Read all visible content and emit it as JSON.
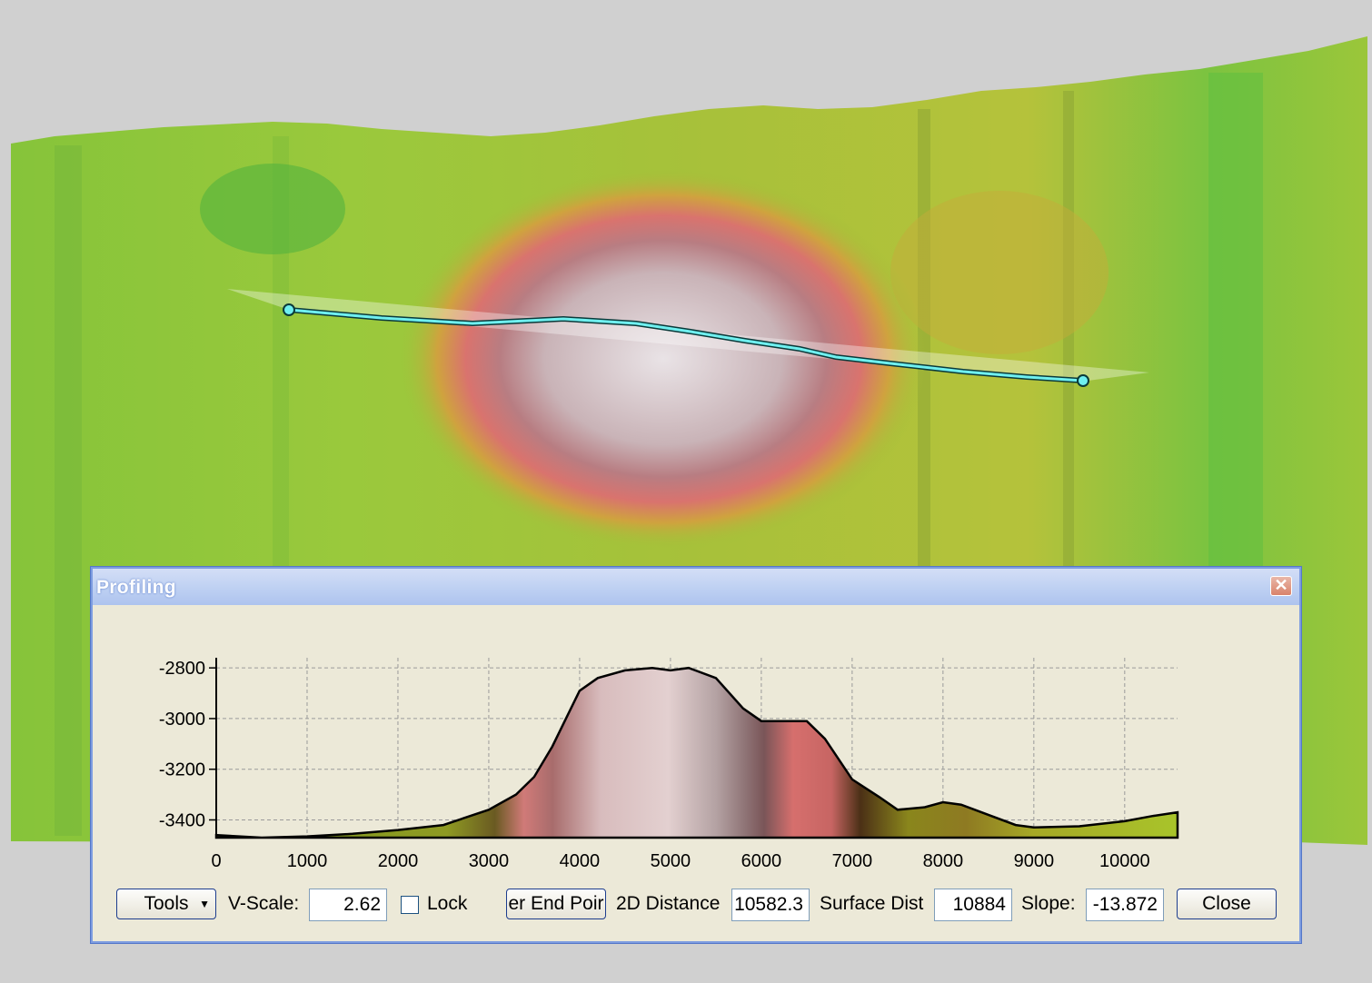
{
  "window": {
    "title": "Profiling",
    "close_glyph": "✕"
  },
  "chart_data": {
    "type": "area",
    "x_ticks": [
      "0",
      "1000",
      "2000",
      "3000",
      "4000",
      "5000",
      "6000",
      "7000",
      "8000",
      "9000",
      "10000"
    ],
    "y_ticks": [
      "-2800",
      "-3000",
      "-3200",
      "-3400"
    ],
    "xlim": [
      0,
      10582
    ],
    "ylim": [
      -3470,
      -2760
    ],
    "grid": true,
    "x": [
      0,
      500,
      1000,
      1500,
      2000,
      2500,
      3000,
      3300,
      3500,
      3700,
      4000,
      4200,
      4500,
      4800,
      5000,
      5200,
      5500,
      5800,
      6000,
      6300,
      6500,
      6700,
      7000,
      7300,
      7500,
      7800,
      8000,
      8200,
      8500,
      8800,
      9000,
      9500,
      10000,
      10300,
      10582
    ],
    "y": [
      -3460,
      -3470,
      -3465,
      -3455,
      -3440,
      -3420,
      -3360,
      -3300,
      -3230,
      -3110,
      -2890,
      -2840,
      -2810,
      -2800,
      -2810,
      -2800,
      -2840,
      -2960,
      -3010,
      -3010,
      -3010,
      -3080,
      -3240,
      -3310,
      -3360,
      -3350,
      -3330,
      -3340,
      -3380,
      -3420,
      -3430,
      -3425,
      -3405,
      -3385,
      -3370
    ]
  },
  "toolbar": {
    "tools_label": "Tools",
    "vscale_label": "V-Scale:",
    "vscale_value": "2.62",
    "lock_label": "Lock",
    "endpoint_button": "er End Poir",
    "distance2d_label": "2D Distance",
    "distance2d_value": "10582.3",
    "surface_label": "Surface Dist",
    "surface_value": "10884",
    "slope_label": "Slope:",
    "slope_value": "-13.872",
    "close_label": "Close"
  },
  "colors": {
    "terrain_green": "#8dc63f",
    "terrain_yellow": "#c6b83a",
    "terrain_red": "#d77a76",
    "terrain_pink": "#d8c8c8",
    "profile_line": "#6ff0f0"
  }
}
